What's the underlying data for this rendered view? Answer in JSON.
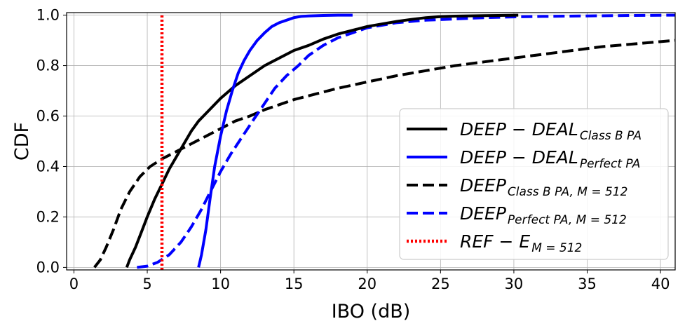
{
  "chart_data": {
    "type": "line",
    "xlabel": "IBO (dB)",
    "ylabel": "CDF",
    "xlim": [
      -0.5,
      41
    ],
    "ylim": [
      -0.01,
      1.01
    ],
    "xticks": [
      "0",
      "5",
      "10",
      "15",
      "20",
      "25",
      "30",
      "35",
      "40"
    ],
    "yticks": [
      "0.0",
      "0.2",
      "0.4",
      "0.6",
      "0.8",
      "1.0"
    ],
    "grid": true,
    "legend_position": "lower-right",
    "series": [
      {
        "name": "DEEP − DEAL",
        "subscript": "Class B PA",
        "color": "#000000",
        "style": "solid",
        "x": [
          3.6,
          3.8,
          4.2,
          4.6,
          5.0,
          5.5,
          6.0,
          6.5,
          7.0,
          7.5,
          8.0,
          8.5,
          9.0,
          10.0,
          11.0,
          12.0,
          13.0,
          14.0,
          15.0,
          16.0,
          17.0,
          18.0,
          19.0,
          20.0,
          21.0,
          22.0,
          23.0,
          24.0,
          25.0,
          26.0,
          28.0,
          30.3
        ],
        "y": [
          0.0,
          0.03,
          0.08,
          0.14,
          0.2,
          0.27,
          0.33,
          0.39,
          0.44,
          0.49,
          0.54,
          0.58,
          0.61,
          0.67,
          0.72,
          0.76,
          0.8,
          0.83,
          0.86,
          0.88,
          0.905,
          0.925,
          0.94,
          0.955,
          0.965,
          0.975,
          0.983,
          0.99,
          0.994,
          0.996,
          0.998,
          1.0
        ]
      },
      {
        "name": "DEEP − DEAL",
        "subscript": "Perfect PA",
        "color": "#0000ff",
        "style": "solid",
        "x": [
          8.5,
          8.7,
          9.0,
          9.3,
          9.6,
          10.0,
          10.4,
          10.8,
          11.2,
          11.6,
          12.0,
          12.5,
          13.0,
          13.5,
          14.0,
          14.5,
          15.0,
          15.5,
          16.0,
          17.0,
          18.0,
          19.0
        ],
        "y": [
          0.0,
          0.05,
          0.15,
          0.28,
          0.4,
          0.52,
          0.62,
          0.7,
          0.77,
          0.82,
          0.86,
          0.9,
          0.93,
          0.955,
          0.97,
          0.98,
          0.99,
          0.995,
          0.997,
          0.999,
          1.0,
          1.0
        ]
      },
      {
        "name": "DEEP",
        "subscript": "Class B PA, M = 512",
        "color": "#000000",
        "style": "dashed",
        "x": [
          1.4,
          1.8,
          2.2,
          2.7,
          3.2,
          3.8,
          4.5,
          5.2,
          6.0,
          7.0,
          8.0,
          9.0,
          10.0,
          11.0,
          12.0,
          13.0,
          14.0,
          15.0,
          16.0,
          17.0,
          18.0,
          20.0,
          22.0,
          24.0,
          26.0,
          28.0,
          30.0,
          32.0,
          34.0,
          36.0,
          38.0,
          40.0,
          41.0
        ],
        "y": [
          0.0,
          0.03,
          0.08,
          0.15,
          0.23,
          0.3,
          0.36,
          0.4,
          0.43,
          0.46,
          0.49,
          0.52,
          0.55,
          0.58,
          0.6,
          0.625,
          0.645,
          0.665,
          0.68,
          0.695,
          0.71,
          0.735,
          0.76,
          0.78,
          0.8,
          0.815,
          0.83,
          0.845,
          0.86,
          0.875,
          0.885,
          0.895,
          0.9
        ]
      },
      {
        "name": "DEEP",
        "subscript": "Perfect PA, M = 512",
        "color": "#0000ff",
        "style": "dashed",
        "x": [
          4.3,
          5.0,
          5.7,
          6.5,
          7.3,
          8.0,
          8.7,
          9.3,
          10.0,
          10.7,
          11.5,
          12.3,
          13.0,
          13.7,
          14.5,
          15.3,
          16.0,
          17.0,
          18.0,
          19.0,
          20.0,
          21.0,
          22.0,
          24.0,
          26.0,
          28.0,
          30.0,
          32.0,
          35.0,
          38.0,
          41.0
        ],
        "y": [
          0.0,
          0.005,
          0.02,
          0.05,
          0.1,
          0.16,
          0.23,
          0.3,
          0.38,
          0.45,
          0.52,
          0.59,
          0.65,
          0.71,
          0.76,
          0.8,
          0.84,
          0.88,
          0.91,
          0.93,
          0.95,
          0.96,
          0.97,
          0.98,
          0.985,
          0.99,
          0.993,
          0.995,
          0.997,
          0.999,
          1.0
        ]
      },
      {
        "name": "REF − E",
        "subscript": "M = 512",
        "color": "#ff0000",
        "style": "dotted",
        "x": [
          6.0,
          6.0
        ],
        "y": [
          -0.01,
          1.0
        ]
      }
    ]
  }
}
